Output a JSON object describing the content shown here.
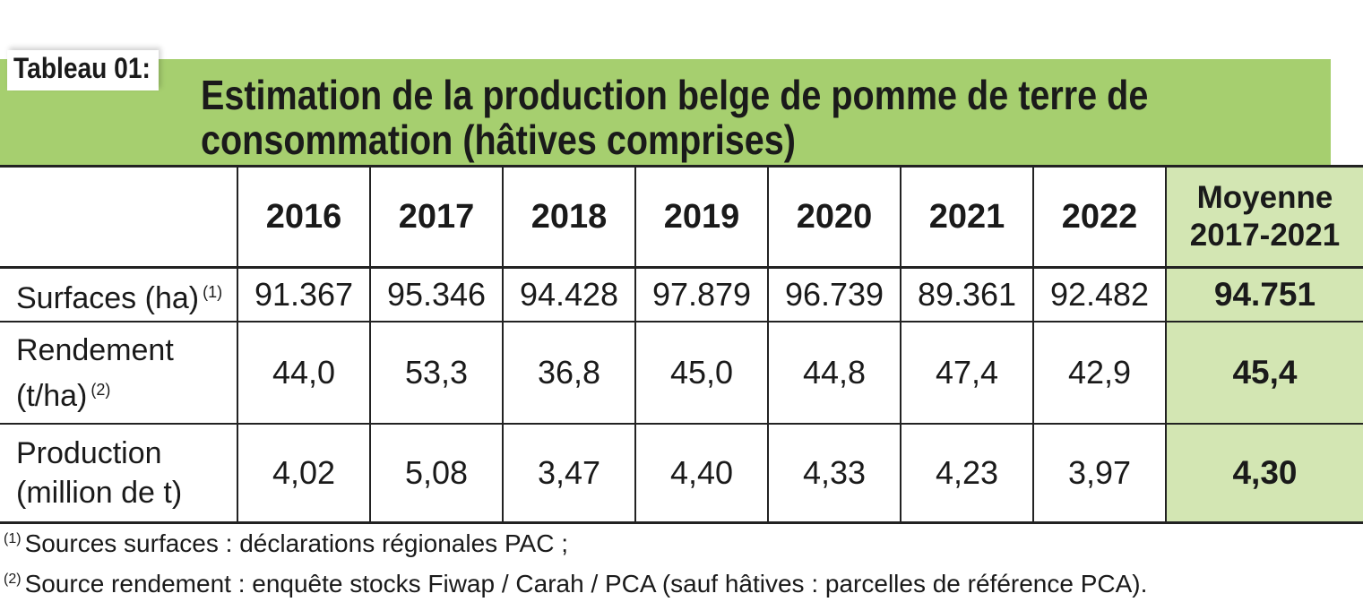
{
  "label": "Tableau 01:",
  "title": {
    "line1": "Estimation de la production belge de pomme de terre de",
    "line2": "consommation (hâtives comprises)"
  },
  "table": {
    "years": [
      "2016",
      "2017",
      "2018",
      "2019",
      "2020",
      "2021",
      "2022"
    ],
    "average_header": {
      "line1": "Moyenne",
      "line2": "2017-2021"
    },
    "rows": [
      {
        "label_line1": "Surfaces (ha)",
        "label_line2": "",
        "note": "(1)",
        "values": [
          "91.367",
          "95.346",
          "94.428",
          "97.879",
          "96.739",
          "89.361",
          "92.482"
        ],
        "average": "94.751"
      },
      {
        "label_line1": "Rendement",
        "label_line2": "(t/ha)",
        "note": "(2)",
        "values": [
          "44,0",
          "53,3",
          "36,8",
          "45,0",
          "44,8",
          "47,4",
          "42,9"
        ],
        "average": "45,4"
      },
      {
        "label_line1": "Production",
        "label_line2": "(million de t)",
        "note": "",
        "values": [
          "4,02",
          "5,08",
          "3,47",
          "4,40",
          "4,33",
          "4,23",
          "3,97"
        ],
        "average": "4,30"
      }
    ]
  },
  "footnotes": [
    {
      "mark": "(1)",
      "text": "Sources surfaces : déclarations régionales PAC ;"
    },
    {
      "mark": "(2)",
      "text": "Source rendement : enquête stocks Fiwap / Carah / PCA (sauf hâtives : parcelles de référence PCA)."
    }
  ],
  "colors": {
    "title_band": "#a6cf6f",
    "average_column": "#d3e6b3",
    "rule": "#222222"
  }
}
